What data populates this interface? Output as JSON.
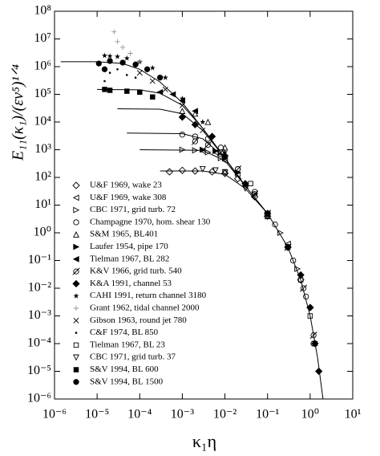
{
  "chart_data": {
    "type": "scatter",
    "y_label": "E₁₁(κ₁)/(εν⁵)¹ᐟ⁴",
    "x_label": "κ₁η",
    "xscale": "log",
    "yscale": "log",
    "xlim": [
      1e-06,
      10
    ],
    "ylim": [
      1e-06,
      100000000.0
    ],
    "xticks": [
      {
        "value": 1e-06,
        "label": "10⁻⁶"
      },
      {
        "value": 1e-05,
        "label": "10⁻⁵"
      },
      {
        "value": 0.0001,
        "label": "10⁻⁴"
      },
      {
        "value": 0.001,
        "label": "10⁻³"
      },
      {
        "value": 0.01,
        "label": "10⁻²"
      },
      {
        "value": 0.1,
        "label": "10⁻¹"
      },
      {
        "value": 1,
        "label": "10⁰"
      },
      {
        "value": 10,
        "label": "10¹"
      }
    ],
    "yticks": [
      {
        "value": 100000000.0,
        "label": "10⁸"
      },
      {
        "value": 10000000.0,
        "label": "10⁷"
      },
      {
        "value": 1000000.0,
        "label": "10⁶"
      },
      {
        "value": 100000.0,
        "label": "10⁵"
      },
      {
        "value": 10000.0,
        "label": "10⁴"
      },
      {
        "value": 1000.0,
        "label": "10³"
      },
      {
        "value": 100.0,
        "label": "10²"
      },
      {
        "value": 10,
        "label": "10¹"
      },
      {
        "value": 1,
        "label": "10⁰"
      },
      {
        "value": 0.1,
        "label": "10⁻¹"
      },
      {
        "value": 0.01,
        "label": "10⁻²"
      },
      {
        "value": 0.001,
        "label": "10⁻³"
      },
      {
        "value": 0.0001,
        "label": "10⁻⁴"
      },
      {
        "value": 1e-05,
        "label": "10⁻⁵"
      },
      {
        "value": 1e-06,
        "label": "10⁻⁶"
      }
    ],
    "curves": [
      {
        "color": "#000",
        "x": [
          1.4e-06,
          1e-05,
          4e-05,
          0.0001,
          0.0003,
          0.001,
          0.003,
          0.01,
          0.03,
          0.1,
          0.3,
          0.6,
          1,
          1.5,
          2
        ],
        "values": [
          1500000.0,
          1500000.0,
          1300000.0,
          800000.0,
          280000.0,
          50000.0,
          6000.0,
          500.0,
          50,
          5,
          0.3,
          0.02,
          0.001,
          3e-05,
          1e-06
        ]
      },
      {
        "color": "#000",
        "x": [
          1e-05,
          0.0001,
          0.0003,
          0.001,
          0.003,
          0.01
        ],
        "values": [
          150000.0,
          145000.0,
          110000.0,
          40000.0,
          6000.0,
          500.0
        ]
      },
      {
        "color": "#000",
        "x": [
          3e-05,
          0.0003,
          0.001,
          0.003,
          0.01
        ],
        "values": [
          30000.0,
          29000.0,
          20000.0,
          5000.0,
          500.0
        ]
      },
      {
        "color": "#000",
        "x": [
          5e-05,
          0.001,
          0.003,
          0.01,
          0.03
        ],
        "values": [
          4000.0,
          3800.0,
          2500.0,
          500.0,
          50
        ]
      },
      {
        "color": "#000",
        "x": [
          0.0001,
          0.003,
          0.01,
          0.03
        ],
        "values": [
          1000.0,
          950.0,
          400.0,
          50
        ]
      },
      {
        "color": "#000",
        "x": [
          0.0003,
          0.003,
          0.01,
          0.03,
          0.1
        ],
        "values": [
          170,
          170,
          130,
          40,
          5
        ]
      }
    ],
    "series": [
      {
        "name": "U&F 1969, wake 23",
        "marker": "diamond",
        "color": "#000",
        "x": [
          0.0005,
          0.001,
          0.002,
          0.005,
          0.01,
          0.02,
          0.05,
          0.1,
          0.3,
          0.6,
          1
        ],
        "values": [
          160,
          180,
          170,
          160,
          140,
          90,
          20,
          4,
          0.3,
          0.02,
          0.002
        ]
      },
      {
        "name": "U&F 1969, wake 308",
        "marker": "ltri",
        "color": "#000",
        "x": [
          0.003,
          0.006,
          0.01,
          0.03,
          0.1,
          0.3
        ],
        "values": [
          900,
          800,
          400,
          50,
          5,
          0.4
        ]
      },
      {
        "name": "CBC 1971, grid turb. 72",
        "marker": "rtri",
        "color": "#000",
        "x": [
          0.001,
          0.002,
          0.004,
          0.008,
          0.02,
          0.05,
          0.1,
          0.2,
          0.5
        ],
        "values": [
          1000,
          950,
          800,
          500,
          150,
          25,
          5,
          1,
          0.05
        ]
      },
      {
        "name": "Champagne 1970, hom. shear 130",
        "marker": "circle",
        "color": "#000",
        "x": [
          0.001,
          0.002,
          0.004,
          0.008,
          0.02,
          0.05,
          0.15,
          0.4,
          0.8,
          1.2
        ],
        "values": [
          3500,
          3000,
          2500,
          1200,
          200,
          30,
          2,
          0.1,
          0.005,
          0.0001
        ]
      },
      {
        "name": "S&M 1965, BL401",
        "marker": "utri",
        "color": "#000",
        "x": [
          0.001,
          0.002,
          0.004,
          0.01,
          0.03,
          0.1
        ],
        "values": [
          25000,
          20000,
          10000,
          1200,
          60,
          4
        ]
      },
      {
        "name": "Laufer 1954, pipe 170",
        "marker": "rtri-f",
        "color": "#000",
        "x": [
          0.003,
          0.006,
          0.01,
          0.02
        ],
        "values": [
          1000,
          900,
          500,
          150
        ]
      },
      {
        "name": "Tielman 1967, BL 282",
        "marker": "ltri-f",
        "color": "#000",
        "x": [
          0.0003,
          0.0006,
          0.001,
          0.002
        ],
        "values": [
          120000,
          100000,
          60000,
          25000
        ]
      },
      {
        "name": "K&V 1966, grid turb. 540",
        "marker": "slash",
        "color": "#000",
        "x": [
          0.002,
          0.004,
          0.008,
          0.02,
          0.05,
          0.1,
          0.3,
          0.7,
          1.2
        ],
        "values": [
          2000,
          1500,
          800,
          200,
          25,
          5,
          0.3,
          0.01,
          0.0002
        ]
      },
      {
        "name": "K&A 1991, channel 53",
        "marker": "diamond-f",
        "color": "#000",
        "x": [
          0.001,
          0.002,
          0.005,
          0.01,
          0.03,
          0.1,
          0.3,
          0.6,
          1,
          1.3,
          1.6
        ],
        "values": [
          15000,
          8000,
          3000,
          600,
          60,
          5,
          0.3,
          0.03,
          0.002,
          0.0001,
          1e-05
        ]
      },
      {
        "name": "CAHI 1991, return channel 3180",
        "marker": "star",
        "color": "#000",
        "x": [
          1.5e-05,
          2e-05,
          3e-05,
          5e-05,
          0.0001,
          0.0002,
          0.0004,
          0.001,
          0.003,
          0.01
        ],
        "values": [
          2500000,
          2400000,
          2300000,
          2000000,
          1500000,
          900000,
          400000,
          70000,
          10000,
          800
        ]
      },
      {
        "name": "Grant 1962, tidal channel 2000",
        "marker": "plus",
        "color": "#999",
        "x": [
          2.5e-05,
          3e-05,
          4e-05,
          6e-05,
          0.0001
        ],
        "values": [
          18000000,
          8000000,
          5000000,
          3000000,
          1500000
        ]
      },
      {
        "name": "Gibson 1963, round jet 780",
        "marker": "cross",
        "color": "#000",
        "x": [
          0.0001,
          0.0002,
          0.0004,
          0.001,
          0.003
        ],
        "values": [
          600000,
          300000,
          150000,
          40000,
          5000
        ]
      },
      {
        "name": "C&F 1974, BL 850",
        "marker": "dot",
        "color": "#000",
        "x": [
          1.5e-05,
          2e-05,
          3e-05,
          5e-05,
          8e-05
        ],
        "values": [
          300000,
          600000,
          800000,
          500000,
          400000
        ]
      },
      {
        "name": "Tielman 1967, BL 23",
        "marker": "square",
        "color": "#000",
        "x": [
          0.01,
          0.02,
          0.04,
          0.1,
          0.3,
          0.6,
          1,
          1.3
        ],
        "values": [
          160,
          130,
          60,
          5,
          0.3,
          0.02,
          0.001,
          0.0001
        ]
      },
      {
        "name": "CBC 1971, grid turb. 37",
        "marker": "dtri",
        "color": "#000",
        "x": [
          0.003,
          0.006,
          0.01,
          0.03,
          0.1,
          0.3
        ],
        "values": [
          200,
          180,
          150,
          40,
          4,
          0.3
        ]
      },
      {
        "name": "S&V 1994, BL 600",
        "marker": "square-f",
        "color": "#000",
        "x": [
          1.5e-05,
          2e-05,
          5e-05,
          0.0001,
          0.0002
        ],
        "values": [
          150000,
          140000,
          130000,
          120000,
          80000
        ]
      },
      {
        "name": "S&V 1994, BL 1500",
        "marker": "circle-f",
        "color": "#000",
        "x": [
          1.1e-05,
          1.5e-05,
          2e-05,
          4e-05,
          8e-05,
          0.00015,
          0.0003
        ],
        "values": [
          1300000,
          800000,
          1600000,
          1400000,
          1200000,
          800000,
          400000
        ]
      }
    ]
  }
}
